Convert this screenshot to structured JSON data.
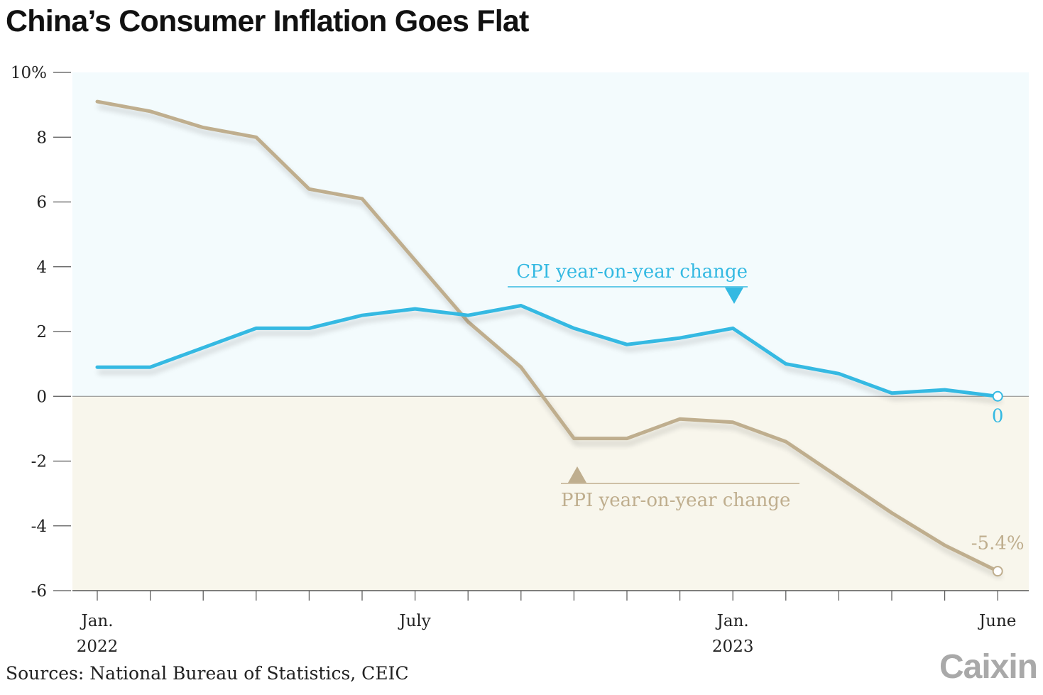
{
  "header": {
    "title": "China’s Consumer Inflation Goes Flat"
  },
  "footer": {
    "source": "Sources: National Bureau of Statistics, CEIC",
    "logo": "Caixin"
  },
  "colors": {
    "cpi": "#34b9e2",
    "ppi": "#bfae8e",
    "positive_band": "#f3fbfd",
    "negative_band": "#f8f6ec"
  },
  "chart_data": {
    "type": "line",
    "title": "China’s Consumer Inflation Goes Flat",
    "ylim": [
      -6,
      10
    ],
    "yticks": [
      -6,
      -4,
      -2,
      0,
      2,
      4,
      6,
      8,
      10
    ],
    "ytick_labels": [
      "-6",
      "-4",
      "-2",
      "0",
      "2",
      "4",
      "6",
      "8",
      "10%"
    ],
    "x": [
      "2022-01",
      "2022-02",
      "2022-03",
      "2022-04",
      "2022-05",
      "2022-06",
      "2022-07",
      "2022-08",
      "2022-09",
      "2022-10",
      "2022-11",
      "2022-12",
      "2023-01",
      "2023-02",
      "2023-03",
      "2023-04",
      "2023-05",
      "2023-06"
    ],
    "x_tick_labels": [
      {
        "x": "2022-01",
        "lines": [
          "Jan.",
          "2022"
        ]
      },
      {
        "x": "2022-07",
        "lines": [
          "July"
        ]
      },
      {
        "x": "2023-01",
        "lines": [
          "Jan.",
          "2023"
        ]
      },
      {
        "x": "2023-06",
        "lines": [
          "June"
        ]
      }
    ],
    "series": [
      {
        "name": "CPI year-on-year change",
        "key": "cpi",
        "values": [
          0.9,
          0.9,
          1.5,
          2.1,
          2.1,
          2.5,
          2.7,
          2.5,
          2.8,
          2.1,
          1.6,
          1.8,
          2.1,
          1.0,
          0.7,
          0.1,
          0.2,
          0.0
        ],
        "end_label": "0"
      },
      {
        "name": "PPI year-on-year change",
        "key": "ppi",
        "values": [
          9.1,
          8.8,
          8.3,
          8.0,
          6.4,
          6.1,
          4.2,
          2.3,
          0.9,
          -1.3,
          -1.3,
          -0.7,
          -0.8,
          -1.4,
          -2.5,
          -3.6,
          -4.6,
          -5.4
        ],
        "end_label": "-5.4%"
      }
    ],
    "grid": false,
    "legend": "inline annotations"
  }
}
